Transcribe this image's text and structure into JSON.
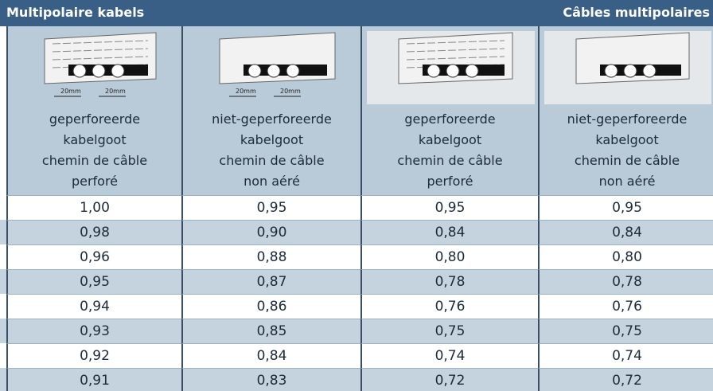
{
  "header": {
    "left": "Multipolaire kabels",
    "right": "Câbles multipolaires"
  },
  "columns": [
    {
      "dimension_labels": [
        "20mm",
        "20mm"
      ],
      "lines": [
        "geperforeerde",
        "kabelgoot",
        "chemin de câble",
        "perforé"
      ]
    },
    {
      "dimension_labels": [
        "20mm",
        "20mm"
      ],
      "lines": [
        "niet-geperforeerde",
        "kabelgoot",
        "chemin de câble",
        "non aéré"
      ]
    },
    {
      "lines": [
        "geperforeerde",
        "kabelgoot",
        "chemin de câble",
        "perforé"
      ]
    },
    {
      "lines": [
        "niet-geperforeerde",
        "kabelgoot",
        "chemin de câble",
        "non aéré"
      ]
    }
  ],
  "table": {
    "rows": [
      [
        "1,00",
        "0,95",
        "0,95",
        "0,95"
      ],
      [
        "0,98",
        "0,90",
        "0,84",
        "0,84"
      ],
      [
        "0,96",
        "0,88",
        "0,80",
        "0,80"
      ],
      [
        "0,95",
        "0,87",
        "0,78",
        "0,78"
      ],
      [
        "0,94",
        "0,86",
        "0,76",
        "0,76"
      ],
      [
        "0,93",
        "0,85",
        "0,75",
        "0,75"
      ],
      [
        "0,92",
        "0,84",
        "0,74",
        "0,74"
      ],
      [
        "0,91",
        "0,83",
        "0,72",
        "0,72"
      ]
    ]
  }
}
